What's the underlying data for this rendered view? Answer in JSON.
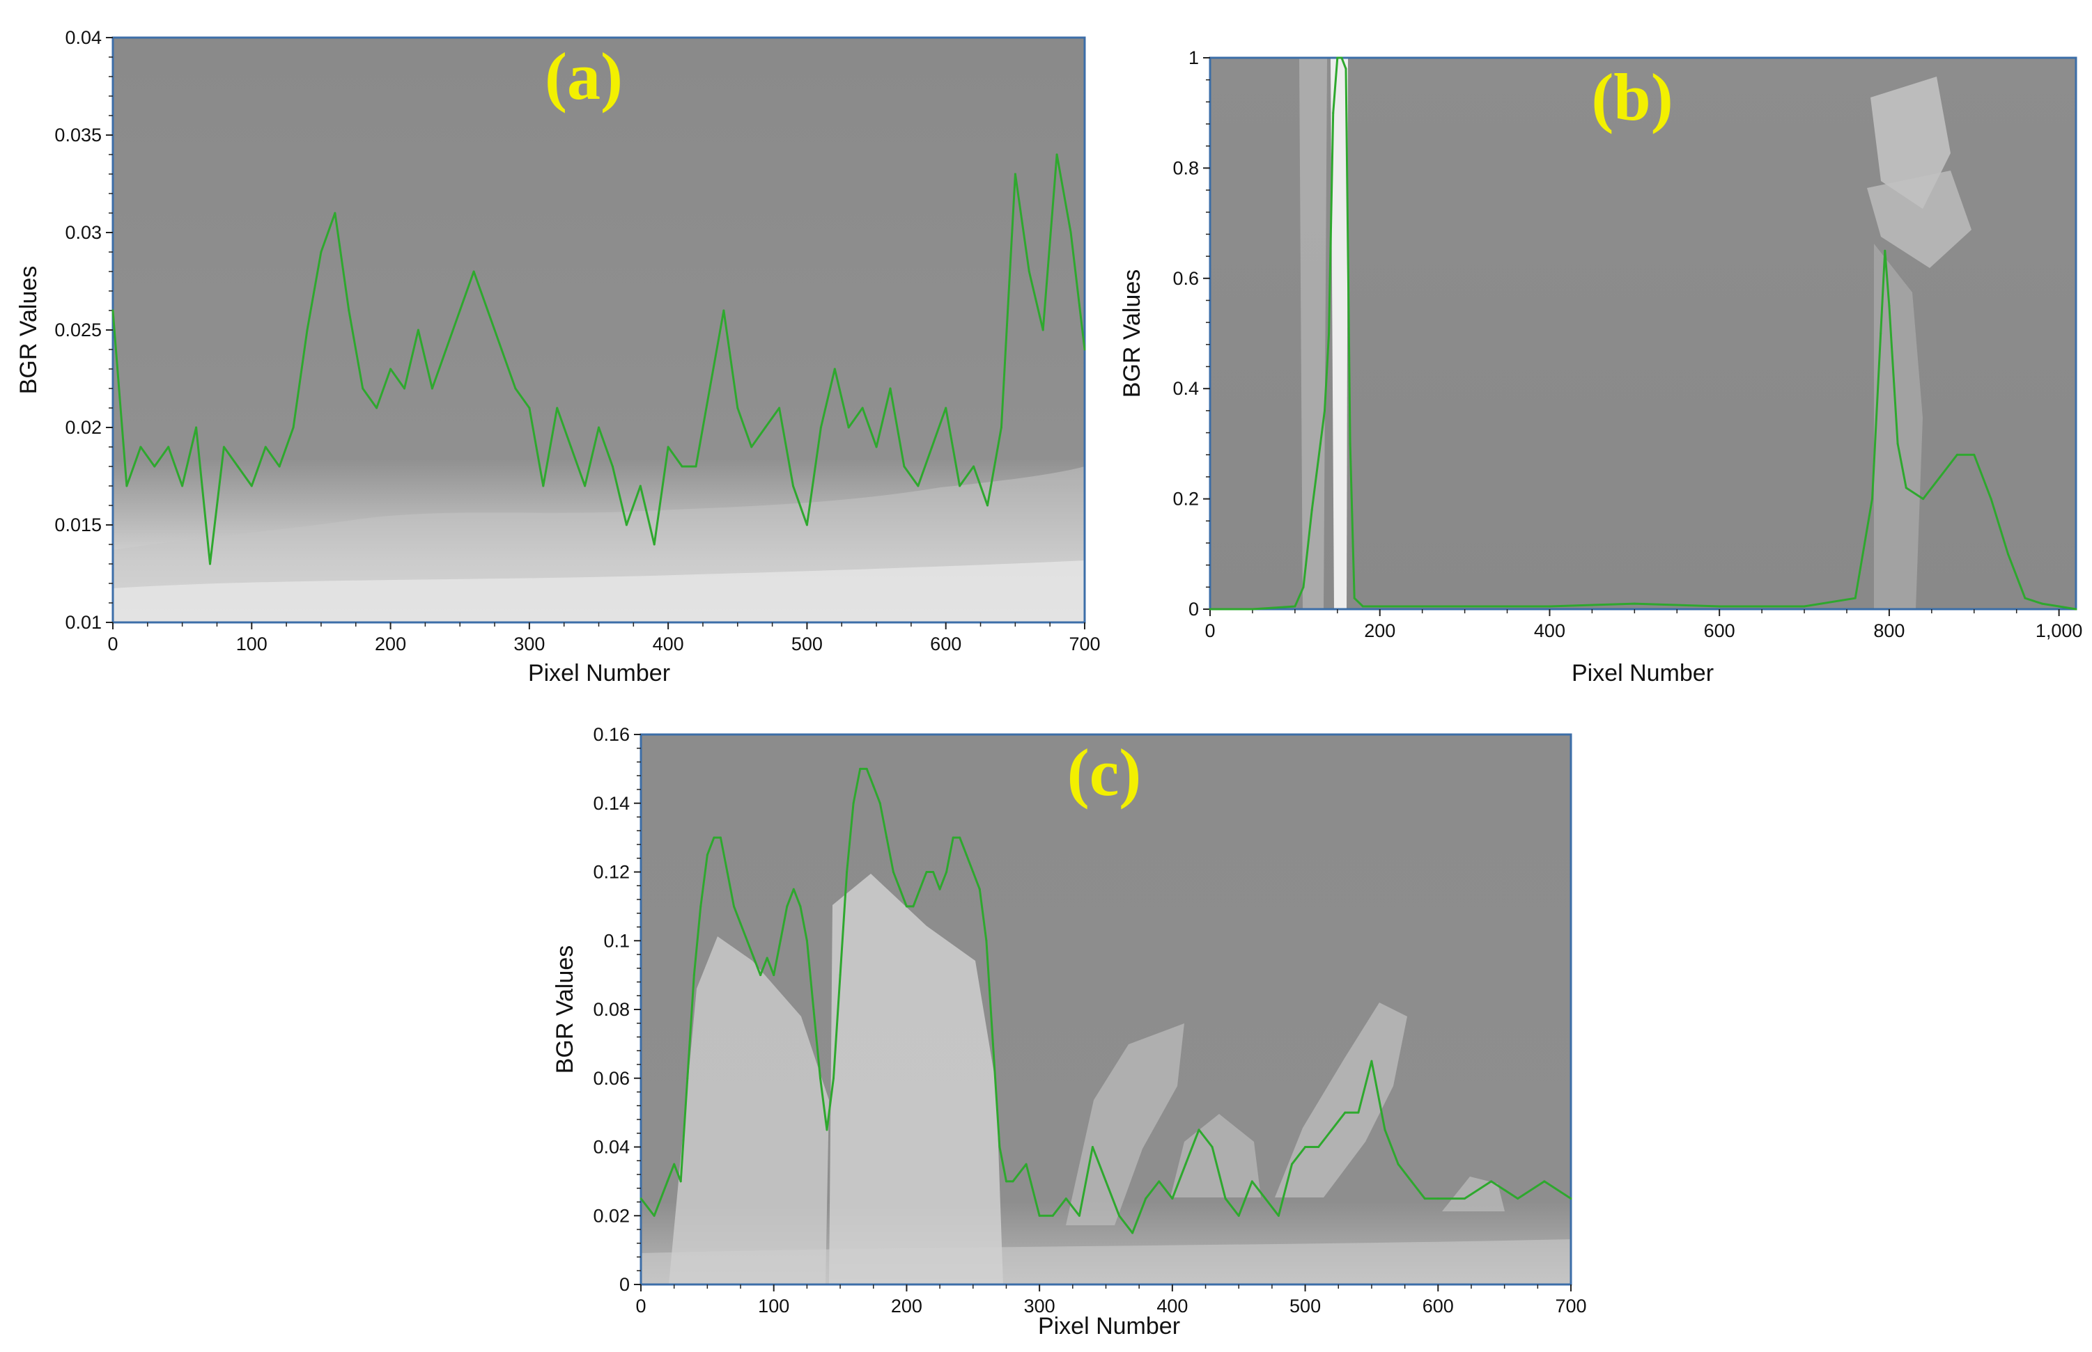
{
  "colors": {
    "line": "#2ea82e",
    "frame": "#3c6ea8",
    "tag": "#f3f000",
    "background": "#8e8e8e"
  },
  "chart_data": [
    {
      "type": "line",
      "panel_label": "(a)",
      "xlabel": "Pixel Number",
      "ylabel": "BGR Values",
      "xlim": [
        0,
        700
      ],
      "ylim": [
        0.01,
        0.04
      ],
      "x_ticks": [
        0,
        100,
        200,
        300,
        400,
        500,
        600,
        700
      ],
      "y_ticks": [
        0.01,
        0.015,
        0.02,
        0.025,
        0.03,
        0.035,
        0.04
      ],
      "x_tick_labels": [
        "0",
        "100",
        "200",
        "300",
        "400",
        "500",
        "600",
        "700"
      ],
      "y_tick_labels": [
        "0.01",
        "0.015",
        "0.02",
        "0.025",
        "0.03",
        "0.035",
        "0.04"
      ],
      "series": [
        {
          "x": [
            0,
            10,
            20,
            30,
            40,
            50,
            60,
            70,
            80,
            90,
            100,
            110,
            120,
            130,
            140,
            150,
            160,
            170,
            180,
            190,
            200,
            210,
            220,
            230,
            240,
            250,
            260,
            270,
            280,
            290,
            300,
            310,
            320,
            330,
            340,
            350,
            360,
            370,
            380,
            390,
            400,
            410,
            420,
            430,
            440,
            450,
            460,
            470,
            480,
            490,
            500,
            510,
            520,
            530,
            540,
            550,
            560,
            570,
            580,
            590,
            600,
            610,
            620,
            630,
            640,
            650,
            660,
            670,
            680,
            690,
            700
          ],
          "y": [
            0.026,
            0.017,
            0.019,
            0.018,
            0.019,
            0.017,
            0.02,
            0.013,
            0.019,
            0.018,
            0.017,
            0.019,
            0.018,
            0.02,
            0.025,
            0.029,
            0.031,
            0.026,
            0.022,
            0.021,
            0.023,
            0.022,
            0.025,
            0.022,
            0.024,
            0.026,
            0.028,
            0.026,
            0.024,
            0.022,
            0.021,
            0.017,
            0.021,
            0.019,
            0.017,
            0.02,
            0.018,
            0.015,
            0.017,
            0.014,
            0.019,
            0.018,
            0.018,
            0.022,
            0.026,
            0.021,
            0.019,
            0.02,
            0.021,
            0.017,
            0.015,
            0.02,
            0.023,
            0.02,
            0.021,
            0.019,
            0.022,
            0.018,
            0.017,
            0.019,
            0.021,
            0.017,
            0.018,
            0.016,
            0.02,
            0.033,
            0.028,
            0.025,
            0.034,
            0.03,
            0.024
          ]
        }
      ]
    },
    {
      "type": "line",
      "panel_label": "(b)",
      "xlabel": "Pixel Number",
      "ylabel": "BGR Values",
      "xlim": [
        0,
        1020
      ],
      "ylim": [
        0,
        1
      ],
      "x_ticks": [
        0,
        200,
        400,
        600,
        800,
        1000
      ],
      "y_ticks": [
        0,
        0.2,
        0.4,
        0.6,
        0.8,
        1
      ],
      "x_tick_labels": [
        "0",
        "200",
        "400",
        "600",
        "800",
        "1,000"
      ],
      "y_tick_labels": [
        "0",
        "0.2",
        "0.4",
        "0.6",
        "0.8",
        "1"
      ],
      "series": [
        {
          "x": [
            0,
            50,
            100,
            110,
            120,
            130,
            135,
            140,
            145,
            150,
            155,
            160,
            165,
            170,
            180,
            200,
            300,
            400,
            500,
            600,
            700,
            760,
            780,
            790,
            795,
            800,
            810,
            820,
            840,
            860,
            880,
            900,
            920,
            940,
            960,
            980,
            1000,
            1020
          ],
          "y": [
            0.0,
            0.0,
            0.005,
            0.04,
            0.18,
            0.3,
            0.36,
            0.5,
            0.9,
            1.0,
            1.0,
            0.98,
            0.3,
            0.02,
            0.005,
            0.005,
            0.005,
            0.005,
            0.01,
            0.005,
            0.005,
            0.02,
            0.2,
            0.5,
            0.65,
            0.55,
            0.3,
            0.22,
            0.2,
            0.24,
            0.28,
            0.28,
            0.2,
            0.1,
            0.02,
            0.01,
            0.005,
            0.0
          ]
        }
      ]
    },
    {
      "type": "line",
      "panel_label": "(c)",
      "xlabel": "Pixel Number",
      "ylabel": "BGR Values",
      "xlim": [
        0,
        700
      ],
      "ylim": [
        0,
        0.16
      ],
      "x_ticks": [
        0,
        100,
        200,
        300,
        400,
        500,
        600,
        700
      ],
      "y_ticks": [
        0,
        0.02,
        0.04,
        0.06,
        0.08,
        0.1,
        0.12,
        0.14,
        0.16
      ],
      "x_tick_labels": [
        "0",
        "100",
        "200",
        "300",
        "400",
        "500",
        "600",
        "700"
      ],
      "y_tick_labels": [
        "0",
        "0.02",
        "0.04",
        "0.06",
        "0.08",
        "0.1",
        "0.12",
        "0.14",
        "0.16"
      ],
      "series": [
        {
          "x": [
            0,
            10,
            20,
            25,
            30,
            35,
            40,
            45,
            50,
            55,
            60,
            65,
            70,
            75,
            80,
            85,
            90,
            95,
            100,
            105,
            110,
            115,
            120,
            125,
            130,
            135,
            140,
            145,
            150,
            155,
            160,
            165,
            170,
            175,
            180,
            185,
            190,
            195,
            200,
            205,
            210,
            215,
            220,
            225,
            230,
            235,
            240,
            245,
            250,
            255,
            260,
            265,
            270,
            275,
            280,
            290,
            300,
            310,
            320,
            330,
            340,
            350,
            360,
            370,
            380,
            390,
            400,
            410,
            420,
            430,
            440,
            450,
            460,
            470,
            480,
            490,
            500,
            510,
            520,
            530,
            540,
            550,
            560,
            570,
            580,
            590,
            600,
            620,
            640,
            660,
            680,
            700
          ],
          "y": [
            0.025,
            0.02,
            0.03,
            0.035,
            0.03,
            0.06,
            0.09,
            0.11,
            0.125,
            0.13,
            0.13,
            0.12,
            0.11,
            0.105,
            0.1,
            0.095,
            0.09,
            0.095,
            0.09,
            0.1,
            0.11,
            0.115,
            0.11,
            0.1,
            0.08,
            0.06,
            0.045,
            0.06,
            0.09,
            0.12,
            0.14,
            0.15,
            0.15,
            0.145,
            0.14,
            0.13,
            0.12,
            0.115,
            0.11,
            0.11,
            0.115,
            0.12,
            0.12,
            0.115,
            0.12,
            0.13,
            0.13,
            0.125,
            0.12,
            0.115,
            0.1,
            0.07,
            0.04,
            0.03,
            0.03,
            0.035,
            0.02,
            0.02,
            0.025,
            0.02,
            0.04,
            0.03,
            0.02,
            0.015,
            0.025,
            0.03,
            0.025,
            0.035,
            0.045,
            0.04,
            0.025,
            0.02,
            0.03,
            0.025,
            0.02,
            0.035,
            0.04,
            0.04,
            0.045,
            0.05,
            0.05,
            0.065,
            0.045,
            0.035,
            0.03,
            0.025,
            0.025,
            0.025,
            0.03,
            0.025,
            0.03,
            0.025
          ]
        }
      ]
    }
  ]
}
